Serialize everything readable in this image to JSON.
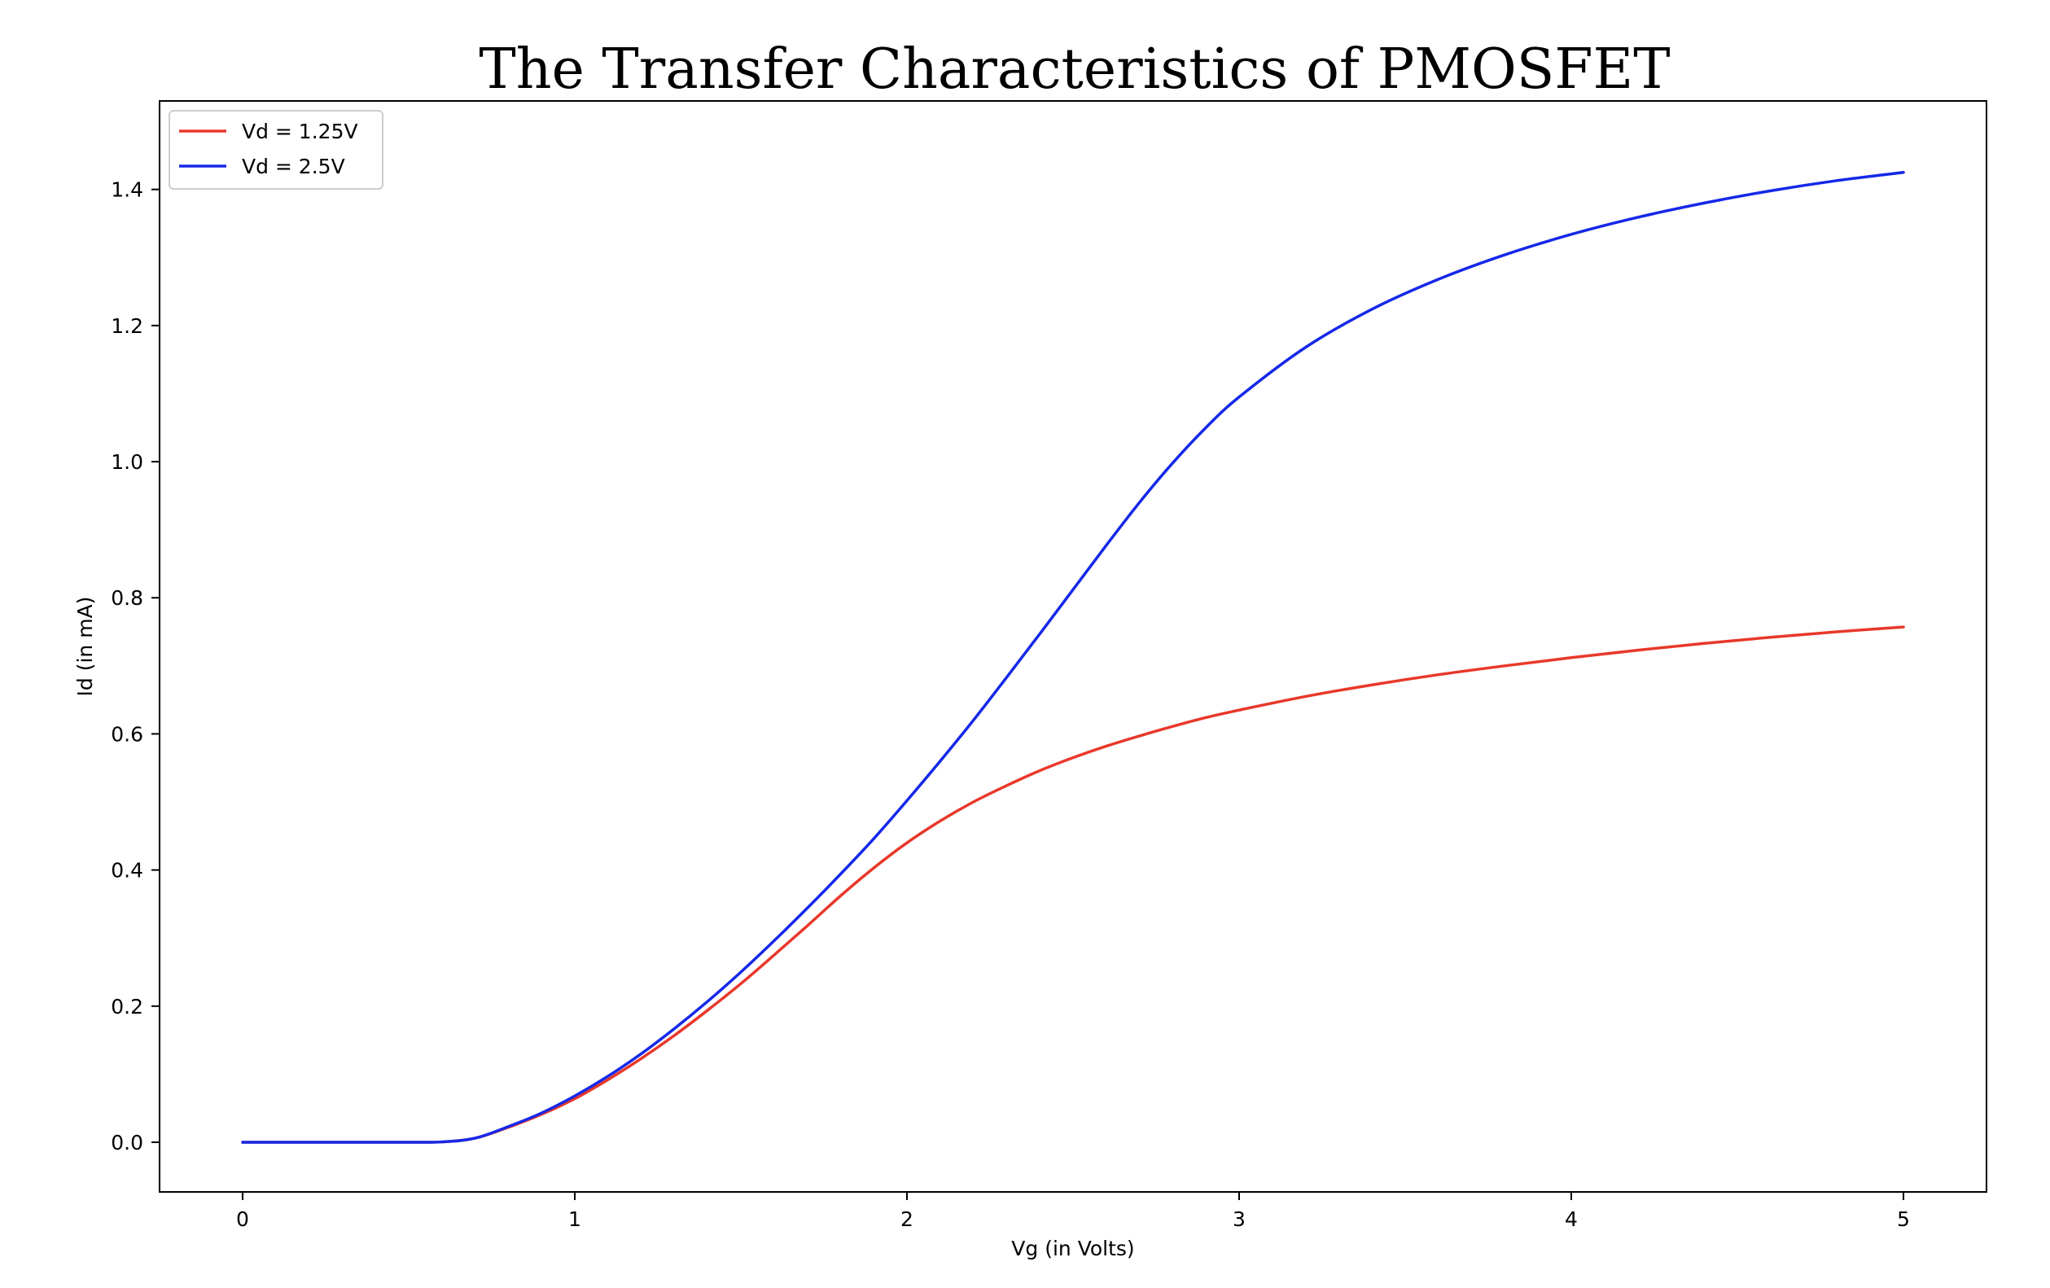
{
  "chart_data": {
    "type": "line",
    "title": "The Transfer Characteristics of PMOSFET",
    "xlabel": "Vg (in Volts)",
    "ylabel": "Id (in mA)",
    "xlim": [
      -0.25,
      5.25
    ],
    "ylim": [
      -0.073,
      1.53
    ],
    "xticks": [
      0,
      1,
      2,
      3,
      4,
      5
    ],
    "xtick_labels": [
      "0",
      "1",
      "2",
      "3",
      "4",
      "5"
    ],
    "yticks": [
      0.0,
      0.2,
      0.4,
      0.6,
      0.8,
      1.0,
      1.2,
      1.4
    ],
    "ytick_labels": [
      "0.0",
      "0.2",
      "0.4",
      "0.6",
      "0.8",
      "1.0",
      "1.2",
      "1.4"
    ],
    "grid": false,
    "legend": {
      "placement": "top-left",
      "entries": [
        "Vd = 1.25V",
        "Vd = 2.5V"
      ]
    },
    "x": [
      0.0,
      0.2,
      0.4,
      0.5,
      0.6,
      0.7,
      0.8,
      0.9,
      1.0,
      1.1,
      1.2,
      1.3,
      1.4,
      1.5,
      1.6,
      1.7,
      1.8,
      1.9,
      2.0,
      2.1,
      2.2,
      2.3,
      2.4,
      2.5,
      2.6,
      2.7,
      2.8,
      2.9,
      3.0,
      3.2,
      3.4,
      3.6,
      3.8,
      4.0,
      4.2,
      4.4,
      4.6,
      4.8,
      5.0
    ],
    "series": [
      {
        "name": "Vd = 1.25V",
        "color": "#e8382a",
        "values": [
          0.0,
          0.0,
          0.0,
          0.0,
          0.0005,
          0.006,
          0.022,
          0.041,
          0.064,
          0.092,
          0.123,
          0.157,
          0.194,
          0.233,
          0.275,
          0.318,
          0.362,
          0.403,
          0.44,
          0.472,
          0.5,
          0.524,
          0.546,
          0.565,
          0.582,
          0.597,
          0.611,
          0.624,
          0.635,
          0.655,
          0.672,
          0.687,
          0.7,
          0.712,
          0.723,
          0.733,
          0.742,
          0.75,
          0.757
        ]
      },
      {
        "name": "Vd = 2.5V",
        "color": "#1528e8",
        "values": [
          0.0,
          0.0,
          0.0,
          0.0,
          0.0005,
          0.006,
          0.023,
          0.043,
          0.068,
          0.097,
          0.13,
          0.167,
          0.207,
          0.25,
          0.296,
          0.344,
          0.394,
          0.446,
          0.502,
          0.56,
          0.62,
          0.683,
          0.747,
          0.812,
          0.877,
          0.94,
          0.998,
          1.05,
          1.095,
          1.168,
          1.224,
          1.268,
          1.304,
          1.334,
          1.359,
          1.38,
          1.398,
          1.413,
          1.425
        ]
      }
    ]
  }
}
